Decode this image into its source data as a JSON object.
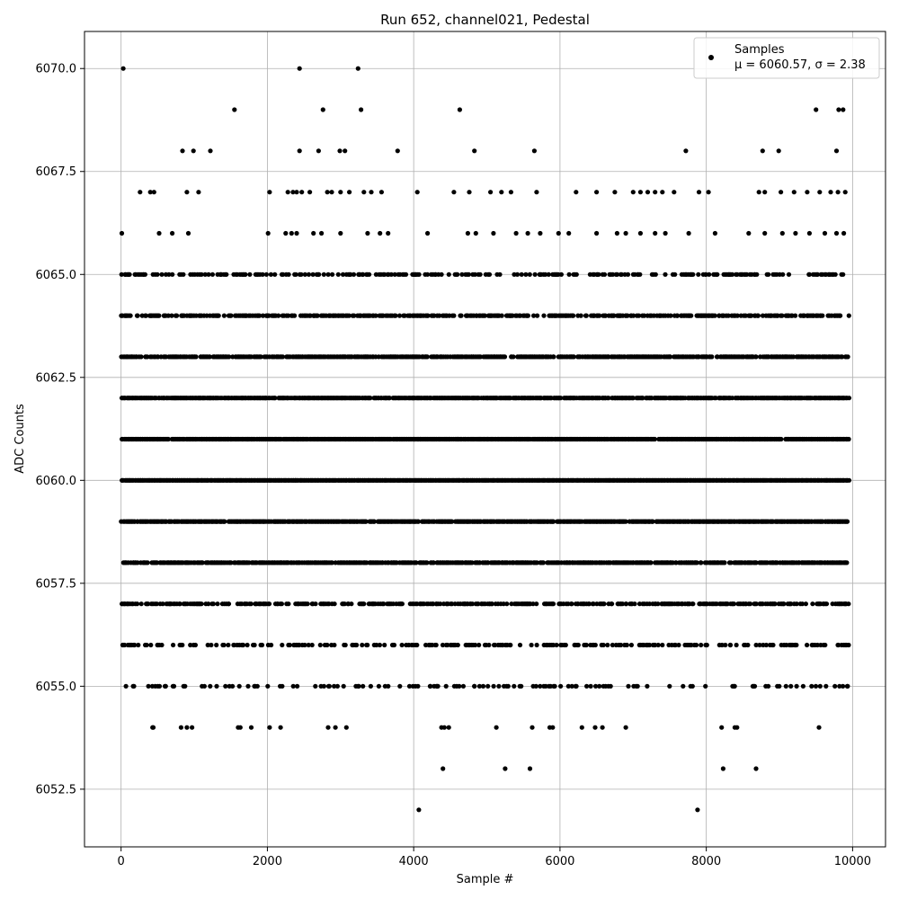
{
  "chart_data": {
    "type": "scatter",
    "title": "Run 652, channel021, Pedestal",
    "xlabel": "Sample #",
    "ylabel": "ADC Counts",
    "xlim": [
      -500,
      10450
    ],
    "ylim": [
      6051.1,
      6070.9
    ],
    "x_ticks": [
      0,
      2000,
      4000,
      6000,
      8000,
      10000
    ],
    "x_tick_labels": [
      "0",
      "2000",
      "4000",
      "6000",
      "8000",
      "10000"
    ],
    "y_ticks": [
      6052.5,
      6055.0,
      6057.5,
      6060.0,
      6062.5,
      6065.0,
      6067.5,
      6070.0
    ],
    "y_tick_labels": [
      "6052.5",
      "6055.0",
      "6057.5",
      "6060.0",
      "6062.5",
      "6065.0",
      "6067.5",
      "6070.0"
    ],
    "grid": true,
    "legend_position": "top-right",
    "series": [
      {
        "name": "Samples",
        "color": "#000000",
        "marker": "circle",
        "stats": "μ = 6060.57, σ = 2.38",
        "points": [
          [
            30,
            6070
          ],
          [
            2440,
            6070
          ],
          [
            3240,
            6070
          ],
          [
            1550,
            6069
          ],
          [
            2760,
            6069
          ],
          [
            3280,
            6069
          ],
          [
            4630,
            6069
          ],
          [
            9500,
            6069
          ],
          [
            9810,
            6069
          ],
          [
            9870,
            6069
          ],
          [
            840,
            6068
          ],
          [
            990,
            6068
          ],
          [
            1220,
            6068
          ],
          [
            2440,
            6068
          ],
          [
            2700,
            6068
          ],
          [
            2990,
            6068
          ],
          [
            3060,
            6068
          ],
          [
            3780,
            6068
          ],
          [
            4830,
            6068
          ],
          [
            5650,
            6068
          ],
          [
            7720,
            6068
          ],
          [
            8770,
            6068
          ],
          [
            8990,
            6068
          ],
          [
            9780,
            6068
          ],
          [
            260,
            6067
          ],
          [
            400,
            6067
          ],
          [
            450,
            6067
          ],
          [
            900,
            6067
          ],
          [
            1060,
            6067
          ],
          [
            2030,
            6067
          ],
          [
            2280,
            6067
          ],
          [
            2350,
            6067
          ],
          [
            2400,
            6067
          ],
          [
            2470,
            6067
          ],
          [
            2580,
            6067
          ],
          [
            2820,
            6067
          ],
          [
            2880,
            6067
          ],
          [
            3000,
            6067
          ],
          [
            3120,
            6067
          ],
          [
            3320,
            6067
          ],
          [
            3420,
            6067
          ],
          [
            3560,
            6067
          ],
          [
            4050,
            6067
          ],
          [
            4550,
            6067
          ],
          [
            4760,
            6067
          ],
          [
            5050,
            6067
          ],
          [
            5200,
            6067
          ],
          [
            5330,
            6067
          ],
          [
            5680,
            6067
          ],
          [
            6220,
            6067
          ],
          [
            6500,
            6067
          ],
          [
            6750,
            6067
          ],
          [
            7000,
            6067
          ],
          [
            7100,
            6067
          ],
          [
            7200,
            6067
          ],
          [
            7300,
            6067
          ],
          [
            7400,
            6067
          ],
          [
            7560,
            6067
          ],
          [
            7900,
            6067
          ],
          [
            8030,
            6067
          ],
          [
            8720,
            6067
          ],
          [
            8800,
            6067
          ],
          [
            9020,
            6067
          ],
          [
            9200,
            6067
          ],
          [
            9380,
            6067
          ],
          [
            9550,
            6067
          ],
          [
            9700,
            6067
          ],
          [
            9800,
            6067
          ],
          [
            9900,
            6067
          ],
          [
            10,
            6066
          ],
          [
            520,
            6066
          ],
          [
            700,
            6066
          ],
          [
            920,
            6066
          ],
          [
            2010,
            6066
          ],
          [
            2250,
            6066
          ],
          [
            2330,
            6066
          ],
          [
            2400,
            6066
          ],
          [
            2630,
            6066
          ],
          [
            2740,
            6066
          ],
          [
            3000,
            6066
          ],
          [
            3370,
            6066
          ],
          [
            3540,
            6066
          ],
          [
            3650,
            6066
          ],
          [
            4190,
            6066
          ],
          [
            4740,
            6066
          ],
          [
            4850,
            6066
          ],
          [
            5090,
            6066
          ],
          [
            5400,
            6066
          ],
          [
            5560,
            6066
          ],
          [
            5730,
            6066
          ],
          [
            5980,
            6066
          ],
          [
            6120,
            6066
          ],
          [
            6500,
            6066
          ],
          [
            6780,
            6066
          ],
          [
            6900,
            6066
          ],
          [
            7100,
            6066
          ],
          [
            7300,
            6066
          ],
          [
            7440,
            6066
          ],
          [
            7760,
            6066
          ],
          [
            8120,
            6066
          ],
          [
            8580,
            6066
          ],
          [
            8800,
            6066
          ],
          [
            9040,
            6066
          ],
          [
            9220,
            6066
          ],
          [
            9410,
            6066
          ],
          [
            9620,
            6066
          ],
          [
            9780,
            6066
          ],
          [
            9880,
            6066
          ]
        ],
        "bands": [
          {
            "y": 6065,
            "density": 0.35
          },
          {
            "y": 6064,
            "density": 0.55
          },
          {
            "y": 6063,
            "density": 0.75
          },
          {
            "y": 6062,
            "density": 0.9
          },
          {
            "y": 6061,
            "density": 0.95
          },
          {
            "y": 6060,
            "density": 1.0
          },
          {
            "y": 6059,
            "density": 0.9
          },
          {
            "y": 6058,
            "density": 0.75
          },
          {
            "y": 6057,
            "density": 0.5
          },
          {
            "y": 6056,
            "density": 0.3
          },
          {
            "y": 6055,
            "density": 0.18
          }
        ],
        "sparse_points": [
          [
            430,
            6054
          ],
          [
            440,
            6054
          ],
          [
            820,
            6054
          ],
          [
            900,
            6054
          ],
          [
            970,
            6054
          ],
          [
            1600,
            6054
          ],
          [
            1630,
            6054
          ],
          [
            1780,
            6054
          ],
          [
            2030,
            6054
          ],
          [
            2180,
            6054
          ],
          [
            2830,
            6054
          ],
          [
            2930,
            6054
          ],
          [
            3080,
            6054
          ],
          [
            4380,
            6054
          ],
          [
            4420,
            6054
          ],
          [
            4480,
            6054
          ],
          [
            5130,
            6054
          ],
          [
            5620,
            6054
          ],
          [
            5860,
            6054
          ],
          [
            5900,
            6054
          ],
          [
            6300,
            6054
          ],
          [
            6480,
            6054
          ],
          [
            6580,
            6054
          ],
          [
            6900,
            6054
          ],
          [
            8210,
            6054
          ],
          [
            8390,
            6054
          ],
          [
            8420,
            6054
          ],
          [
            9540,
            6054
          ],
          [
            4400,
            6053
          ],
          [
            5250,
            6053
          ],
          [
            5590,
            6053
          ],
          [
            8230,
            6053
          ],
          [
            8680,
            6053
          ],
          [
            4070,
            6052
          ],
          [
            7880,
            6052
          ]
        ]
      }
    ]
  }
}
